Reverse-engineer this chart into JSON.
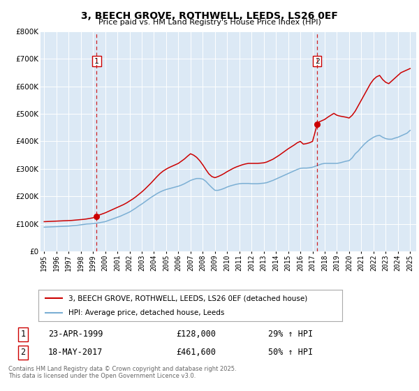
{
  "title": "3, BEECH GROVE, ROTHWELL, LEEDS, LS26 0EF",
  "subtitle": "Price paid vs. HM Land Registry's House Price Index (HPI)",
  "legend_line1": "3, BEECH GROVE, ROTHWELL, LEEDS, LS26 0EF (detached house)",
  "legend_line2": "HPI: Average price, detached house, Leeds",
  "sale1_label": "1",
  "sale1_date": "23-APR-1999",
  "sale1_price": "£128,000",
  "sale1_hpi": "29% ↑ HPI",
  "sale2_label": "2",
  "sale2_date": "18-MAY-2017",
  "sale2_price": "£461,600",
  "sale2_hpi": "50% ↑ HPI",
  "footer": "Contains HM Land Registry data © Crown copyright and database right 2025.\nThis data is licensed under the Open Government Licence v3.0.",
  "red_color": "#cc0000",
  "blue_color": "#7bafd4",
  "bg_color": "#dce9f5",
  "plot_bg": "#ffffff",
  "vline1_x": 1999.3,
  "vline2_x": 2017.38,
  "marker1_x": 1999.3,
  "marker1_y": 128000,
  "marker2_x": 2017.38,
  "marker2_y": 461600,
  "ylim": [
    0,
    800000
  ],
  "xlim_start": 1994.7,
  "xlim_end": 2025.5,
  "yticks": [
    0,
    100000,
    200000,
    300000,
    400000,
    500000,
    600000,
    700000,
    800000
  ],
  "xticks": [
    1995,
    1996,
    1997,
    1998,
    1999,
    2000,
    2001,
    2002,
    2003,
    2004,
    2005,
    2006,
    2007,
    2008,
    2009,
    2010,
    2011,
    2012,
    2013,
    2014,
    2015,
    2016,
    2017,
    2018,
    2019,
    2020,
    2021,
    2022,
    2023,
    2024,
    2025
  ],
  "red_x": [
    1995.0,
    1995.25,
    1995.5,
    1995.75,
    1996.0,
    1996.25,
    1996.5,
    1996.75,
    1997.0,
    1997.25,
    1997.5,
    1997.75,
    1998.0,
    1998.25,
    1998.5,
    1998.75,
    1999.0,
    1999.3,
    1999.5,
    1999.75,
    2000.0,
    2000.25,
    2000.5,
    2000.75,
    2001.0,
    2001.25,
    2001.5,
    2001.75,
    2002.0,
    2002.25,
    2002.5,
    2002.75,
    2003.0,
    2003.25,
    2003.5,
    2003.75,
    2004.0,
    2004.25,
    2004.5,
    2004.75,
    2005.0,
    2005.25,
    2005.5,
    2005.75,
    2006.0,
    2006.25,
    2006.5,
    2006.75,
    2007.0,
    2007.25,
    2007.5,
    2007.75,
    2008.0,
    2008.25,
    2008.5,
    2008.75,
    2009.0,
    2009.25,
    2009.5,
    2009.75,
    2010.0,
    2010.25,
    2010.5,
    2010.75,
    2011.0,
    2011.25,
    2011.5,
    2011.75,
    2012.0,
    2012.25,
    2012.5,
    2012.75,
    2013.0,
    2013.25,
    2013.5,
    2013.75,
    2014.0,
    2014.25,
    2014.5,
    2014.75,
    2015.0,
    2015.25,
    2015.5,
    2015.75,
    2016.0,
    2016.25,
    2016.5,
    2016.75,
    2017.0,
    2017.38,
    2017.5,
    2017.75,
    2018.0,
    2018.25,
    2018.5,
    2018.75,
    2019.0,
    2019.25,
    2019.5,
    2019.75,
    2020.0,
    2020.25,
    2020.5,
    2020.75,
    2021.0,
    2021.25,
    2021.5,
    2021.75,
    2022.0,
    2022.25,
    2022.5,
    2022.75,
    2023.0,
    2023.25,
    2023.5,
    2023.75,
    2024.0,
    2024.25,
    2024.5,
    2024.75,
    2025.0
  ],
  "red_y": [
    108000,
    108500,
    109000,
    109500,
    110000,
    110500,
    111000,
    111500,
    112000,
    112500,
    113500,
    114500,
    115500,
    116500,
    118000,
    120000,
    122000,
    128000,
    132000,
    136000,
    140000,
    145000,
    150000,
    155000,
    160000,
    165000,
    170000,
    176000,
    183000,
    190000,
    198000,
    207000,
    216000,
    226000,
    237000,
    248000,
    260000,
    272000,
    283000,
    292000,
    299000,
    305000,
    310000,
    315000,
    320000,
    328000,
    336000,
    346000,
    355000,
    350000,
    342000,
    330000,
    315000,
    298000,
    282000,
    272000,
    268000,
    272000,
    277000,
    283000,
    290000,
    296000,
    302000,
    307000,
    311000,
    315000,
    318000,
    320000,
    320000,
    320000,
    320000,
    321000,
    322000,
    325000,
    330000,
    335000,
    342000,
    349000,
    357000,
    365000,
    373000,
    380000,
    387000,
    395000,
    400000,
    390000,
    392000,
    395000,
    400000,
    461600,
    470000,
    475000,
    480000,
    488000,
    495000,
    502000,
    495000,
    492000,
    490000,
    488000,
    485000,
    495000,
    510000,
    530000,
    550000,
    570000,
    590000,
    610000,
    625000,
    635000,
    640000,
    625000,
    615000,
    610000,
    620000,
    630000,
    640000,
    650000,
    655000,
    660000,
    665000
  ],
  "blue_x": [
    1995.0,
    1995.25,
    1995.5,
    1995.75,
    1996.0,
    1996.25,
    1996.5,
    1996.75,
    1997.0,
    1997.25,
    1997.5,
    1997.75,
    1998.0,
    1998.25,
    1998.5,
    1998.75,
    1999.0,
    1999.25,
    1999.5,
    1999.75,
    2000.0,
    2000.25,
    2000.5,
    2000.75,
    2001.0,
    2001.25,
    2001.5,
    2001.75,
    2002.0,
    2002.25,
    2002.5,
    2002.75,
    2003.0,
    2003.25,
    2003.5,
    2003.75,
    2004.0,
    2004.25,
    2004.5,
    2004.75,
    2005.0,
    2005.25,
    2005.5,
    2005.75,
    2006.0,
    2006.25,
    2006.5,
    2006.75,
    2007.0,
    2007.25,
    2007.5,
    2007.75,
    2008.0,
    2008.25,
    2008.5,
    2008.75,
    2009.0,
    2009.25,
    2009.5,
    2009.75,
    2010.0,
    2010.25,
    2010.5,
    2010.75,
    2011.0,
    2011.25,
    2011.5,
    2011.75,
    2012.0,
    2012.25,
    2012.5,
    2012.75,
    2013.0,
    2013.25,
    2013.5,
    2013.75,
    2014.0,
    2014.25,
    2014.5,
    2014.75,
    2015.0,
    2015.25,
    2015.5,
    2015.75,
    2016.0,
    2016.25,
    2016.5,
    2016.75,
    2017.0,
    2017.25,
    2017.5,
    2017.75,
    2018.0,
    2018.25,
    2018.5,
    2018.75,
    2019.0,
    2019.25,
    2019.5,
    2019.75,
    2020.0,
    2020.25,
    2020.5,
    2020.75,
    2021.0,
    2021.25,
    2021.5,
    2021.75,
    2022.0,
    2022.25,
    2022.5,
    2022.75,
    2023.0,
    2023.25,
    2023.5,
    2023.75,
    2024.0,
    2024.25,
    2024.5,
    2024.75,
    2025.0
  ],
  "blue_y": [
    88000,
    88500,
    89000,
    89500,
    90000,
    90500,
    91000,
    91500,
    92000,
    93000,
    94000,
    95000,
    96500,
    98000,
    99500,
    100000,
    101000,
    102000,
    104000,
    106000,
    108000,
    112000,
    116000,
    120000,
    124000,
    128000,
    133000,
    138000,
    143000,
    150000,
    157000,
    165000,
    172000,
    180000,
    188000,
    196000,
    203000,
    210000,
    216000,
    221000,
    225000,
    228000,
    231000,
    234000,
    237000,
    241000,
    246000,
    252000,
    258000,
    262000,
    265000,
    265000,
    263000,
    255000,
    243000,
    232000,
    222000,
    222000,
    225000,
    229000,
    234000,
    238000,
    241000,
    244000,
    246000,
    247000,
    247000,
    247000,
    246000,
    246000,
    246000,
    247000,
    248000,
    250000,
    254000,
    258000,
    263000,
    268000,
    273000,
    278000,
    283000,
    288000,
    293000,
    298000,
    302000,
    303000,
    303000,
    304000,
    306000,
    310000,
    314000,
    318000,
    320000,
    320000,
    320000,
    320000,
    320000,
    322000,
    325000,
    328000,
    330000,
    340000,
    355000,
    365000,
    378000,
    390000,
    400000,
    408000,
    415000,
    420000,
    422000,
    415000,
    410000,
    408000,
    408000,
    412000,
    415000,
    420000,
    425000,
    430000,
    440000
  ]
}
